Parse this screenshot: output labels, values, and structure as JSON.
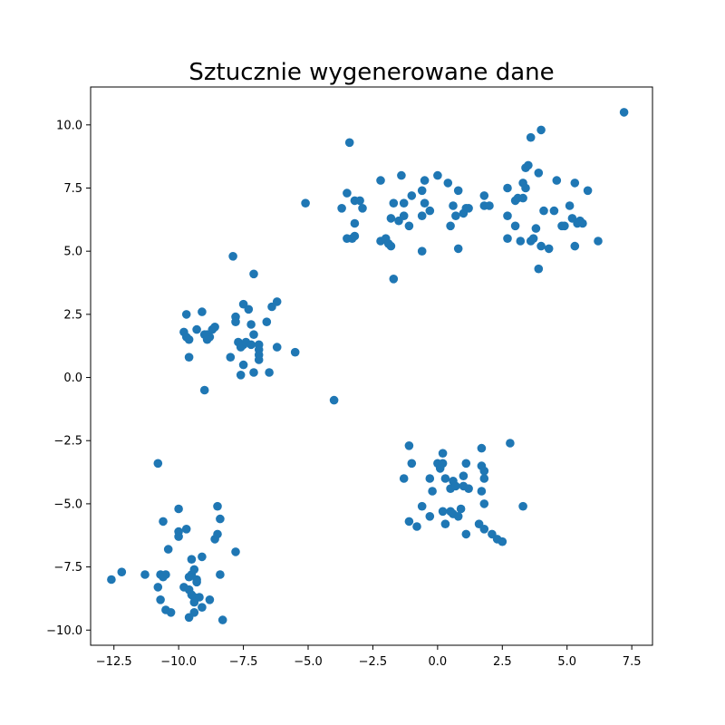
{
  "chart_data": {
    "type": "scatter",
    "title": "Sztucznie wygenerowane dane",
    "xlabel": "",
    "ylabel": "",
    "xlim": [
      -13.4,
      8.3
    ],
    "ylim": [
      -10.6,
      11.5
    ],
    "xticks": [
      -12.5,
      -10.0,
      -7.5,
      -5.0,
      -2.5,
      0.0,
      2.5,
      5.0,
      7.5
    ],
    "xtick_labels": [
      "−12.5",
      "−10.0",
      "−7.5",
      "−5.0",
      "−2.5",
      "0.0",
      "2.5",
      "5.0",
      "7.5"
    ],
    "yticks": [
      -10.0,
      -7.5,
      -5.0,
      -2.5,
      0.0,
      2.5,
      5.0,
      7.5,
      10.0
    ],
    "ytick_labels": [
      "−10.0",
      "−7.5",
      "−5.0",
      "−2.5",
      "0.0",
      "2.5",
      "5.0",
      "7.5",
      "10.0"
    ],
    "grid": false,
    "marker_color": "#1f77b4",
    "points": [
      [
        7.2,
        10.5
      ],
      [
        -3.4,
        9.3
      ],
      [
        -5.1,
        6.9
      ],
      [
        -3.5,
        7.3
      ],
      [
        -3.2,
        7.0
      ],
      [
        -3.0,
        7.0
      ],
      [
        -3.7,
        6.7
      ],
      [
        -2.9,
        6.7
      ],
      [
        -3.2,
        6.1
      ],
      [
        -3.5,
        5.5
      ],
      [
        -3.3,
        5.5
      ],
      [
        -3.2,
        5.6
      ],
      [
        -2.2,
        7.8
      ],
      [
        -2.2,
        5.4
      ],
      [
        -2.0,
        5.5
      ],
      [
        -1.9,
        5.3
      ],
      [
        -1.8,
        5.2
      ],
      [
        -1.7,
        3.9
      ],
      [
        -1.7,
        6.9
      ],
      [
        -1.8,
        6.3
      ],
      [
        -1.4,
        8.0
      ],
      [
        -1.5,
        6.2
      ],
      [
        -1.3,
        6.4
      ],
      [
        -1.3,
        6.9
      ],
      [
        -1.1,
        6.0
      ],
      [
        -1.0,
        7.2
      ],
      [
        -0.6,
        7.4
      ],
      [
        -0.6,
        6.4
      ],
      [
        -0.5,
        7.8
      ],
      [
        -0.5,
        6.9
      ],
      [
        -0.3,
        6.6
      ],
      [
        0.0,
        8.0
      ],
      [
        0.4,
        7.7
      ],
      [
        0.5,
        6.0
      ],
      [
        0.6,
        6.8
      ],
      [
        0.7,
        6.4
      ],
      [
        0.8,
        7.4
      ],
      [
        0.8,
        5.1
      ],
      [
        1.0,
        6.5
      ],
      [
        1.1,
        6.7
      ],
      [
        1.2,
        6.7
      ],
      [
        -0.6,
        5.0
      ],
      [
        1.8,
        7.2
      ],
      [
        1.8,
        6.8
      ],
      [
        2.0,
        6.8
      ],
      [
        2.7,
        7.5
      ],
      [
        2.7,
        6.4
      ],
      [
        2.7,
        5.5
      ],
      [
        3.0,
        7.0
      ],
      [
        3.0,
        6.0
      ],
      [
        3.1,
        7.1
      ],
      [
        3.2,
        5.4
      ],
      [
        3.3,
        7.7
      ],
      [
        3.3,
        7.1
      ],
      [
        3.4,
        7.5
      ],
      [
        3.4,
        8.3
      ],
      [
        3.5,
        8.4
      ],
      [
        3.6,
        9.5
      ],
      [
        3.6,
        5.4
      ],
      [
        3.7,
        5.5
      ],
      [
        3.8,
        5.9
      ],
      [
        3.9,
        8.1
      ],
      [
        3.9,
        4.3
      ],
      [
        4.0,
        9.8
      ],
      [
        4.0,
        5.2
      ],
      [
        4.1,
        6.6
      ],
      [
        4.3,
        5.1
      ],
      [
        4.5,
        6.6
      ],
      [
        4.6,
        7.8
      ],
      [
        4.8,
        6.0
      ],
      [
        4.9,
        6.0
      ],
      [
        5.1,
        6.8
      ],
      [
        5.2,
        6.3
      ],
      [
        5.3,
        7.7
      ],
      [
        5.3,
        5.2
      ],
      [
        5.4,
        6.1
      ],
      [
        5.5,
        6.2
      ],
      [
        5.6,
        6.1
      ],
      [
        5.8,
        7.4
      ],
      [
        6.2,
        5.4
      ],
      [
        -7.9,
        4.8
      ],
      [
        -7.1,
        4.1
      ],
      [
        -9.7,
        2.5
      ],
      [
        -9.1,
        2.6
      ],
      [
        -7.8,
        2.4
      ],
      [
        -7.5,
        2.9
      ],
      [
        -7.3,
        2.7
      ],
      [
        -6.6,
        2.2
      ],
      [
        -6.4,
        2.8
      ],
      [
        -6.2,
        3.0
      ],
      [
        -9.8,
        1.8
      ],
      [
        -9.7,
        1.6
      ],
      [
        -9.6,
        1.5
      ],
      [
        -9.3,
        1.9
      ],
      [
        -9.0,
        1.7
      ],
      [
        -8.9,
        1.7
      ],
      [
        -8.8,
        1.6
      ],
      [
        -8.7,
        1.9
      ],
      [
        -8.6,
        2.0
      ],
      [
        -7.8,
        2.2
      ],
      [
        -7.2,
        2.1
      ],
      [
        -7.1,
        1.7
      ],
      [
        -7.7,
        1.4
      ],
      [
        -7.6,
        1.2
      ],
      [
        -7.5,
        1.3
      ],
      [
        -7.4,
        1.4
      ],
      [
        -7.2,
        1.3
      ],
      [
        -6.9,
        1.3
      ],
      [
        -6.9,
        1.1
      ],
      [
        -6.9,
        0.9
      ],
      [
        -6.2,
        1.2
      ],
      [
        -5.5,
        1.0
      ],
      [
        -9.6,
        0.8
      ],
      [
        -8.9,
        1.5
      ],
      [
        -8.0,
        0.8
      ],
      [
        -7.5,
        0.5
      ],
      [
        -7.1,
        0.2
      ],
      [
        -6.9,
        0.7
      ],
      [
        -6.5,
        0.2
      ],
      [
        -7.6,
        0.1
      ],
      [
        -9.0,
        -0.5
      ],
      [
        -4.0,
        -0.9
      ],
      [
        -1.1,
        -2.7
      ],
      [
        0.2,
        -3.0
      ],
      [
        1.7,
        -2.8
      ],
      [
        2.8,
        -2.6
      ],
      [
        -1.0,
        -3.4
      ],
      [
        0.0,
        -3.4
      ],
      [
        0.2,
        -3.4
      ],
      [
        0.1,
        -3.6
      ],
      [
        1.1,
        -3.4
      ],
      [
        1.7,
        -3.5
      ],
      [
        1.8,
        -3.7
      ],
      [
        -1.3,
        -4.0
      ],
      [
        -0.3,
        -4.0
      ],
      [
        0.3,
        -4.0
      ],
      [
        0.6,
        -4.1
      ],
      [
        1.0,
        -3.9
      ],
      [
        1.8,
        -4.0
      ],
      [
        0.5,
        -4.4
      ],
      [
        0.7,
        -4.3
      ],
      [
        1.0,
        -4.3
      ],
      [
        1.2,
        -4.4
      ],
      [
        1.7,
        -4.5
      ],
      [
        -0.2,
        -4.5
      ],
      [
        -0.6,
        -5.1
      ],
      [
        -0.3,
        -5.5
      ],
      [
        0.2,
        -5.3
      ],
      [
        0.5,
        -5.3
      ],
      [
        0.6,
        -5.4
      ],
      [
        0.8,
        -5.5
      ],
      [
        0.9,
        -5.2
      ],
      [
        1.8,
        -5.0
      ],
      [
        -1.1,
        -5.7
      ],
      [
        -0.8,
        -5.9
      ],
      [
        0.3,
        -5.8
      ],
      [
        1.1,
        -6.2
      ],
      [
        1.6,
        -5.8
      ],
      [
        1.8,
        -6.0
      ],
      [
        2.1,
        -6.2
      ],
      [
        2.3,
        -6.4
      ],
      [
        2.5,
        -6.5
      ],
      [
        3.3,
        -5.1
      ],
      [
        -10.8,
        -3.4
      ],
      [
        -8.5,
        -5.1
      ],
      [
        -10.6,
        -5.7
      ],
      [
        -10.0,
        -5.2
      ],
      [
        -8.4,
        -5.6
      ],
      [
        -10.0,
        -6.1
      ],
      [
        -9.7,
        -6.0
      ],
      [
        -10.0,
        -6.3
      ],
      [
        -8.5,
        -6.2
      ],
      [
        -8.6,
        -6.4
      ],
      [
        -10.4,
        -6.8
      ],
      [
        -9.1,
        -7.1
      ],
      [
        -7.8,
        -6.9
      ],
      [
        -9.5,
        -7.2
      ],
      [
        -12.6,
        -8.0
      ],
      [
        -12.2,
        -7.7
      ],
      [
        -11.3,
        -7.8
      ],
      [
        -10.7,
        -7.8
      ],
      [
        -10.5,
        -7.8
      ],
      [
        -10.6,
        -7.9
      ],
      [
        -9.5,
        -7.8
      ],
      [
        -9.4,
        -7.6
      ],
      [
        -9.6,
        -7.9
      ],
      [
        -9.3,
        -8.0
      ],
      [
        -9.3,
        -8.1
      ],
      [
        -8.4,
        -7.8
      ],
      [
        -10.8,
        -8.3
      ],
      [
        -9.8,
        -8.3
      ],
      [
        -9.6,
        -8.4
      ],
      [
        -9.5,
        -8.6
      ],
      [
        -9.4,
        -8.7
      ],
      [
        -9.2,
        -8.7
      ],
      [
        -8.8,
        -8.8
      ],
      [
        -10.7,
        -8.8
      ],
      [
        -9.4,
        -8.9
      ],
      [
        -9.1,
        -9.1
      ],
      [
        -9.4,
        -9.3
      ],
      [
        -10.5,
        -9.2
      ],
      [
        -10.3,
        -9.3
      ],
      [
        -9.6,
        -9.5
      ],
      [
        -8.3,
        -9.6
      ]
    ]
  }
}
